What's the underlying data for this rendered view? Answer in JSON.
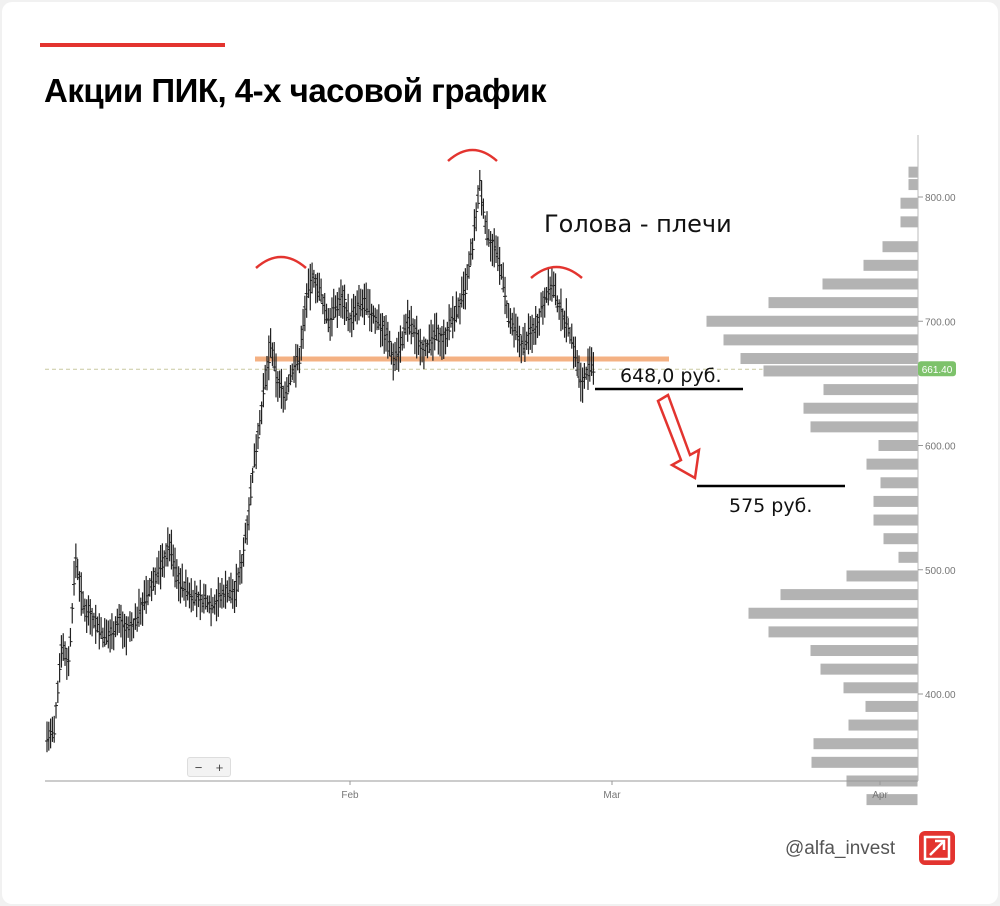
{
  "header": {
    "title": "Акции ПИК, 4-х часовой график"
  },
  "footer": {
    "handle": "@alfa_invest"
  },
  "zoom": {
    "minus": "−",
    "plus": "+"
  },
  "colors": {
    "accent": "#e3342f",
    "candles": "#222222",
    "neckline": "#f4b183",
    "volume_bars": "#b3b3b3",
    "price_badge": "#7dc26b",
    "arrow": "#e3342f"
  },
  "chart_data": {
    "type": "candlestick",
    "y_axis": {
      "ticks": [
        "400.00",
        "500.00",
        "600.00",
        "700.00",
        "800.00"
      ],
      "min": 340,
      "max": 830
    },
    "x_axis": {
      "ticks": [
        "Feb",
        "Mar",
        "Apr"
      ]
    },
    "current_price": "661.40",
    "price_series": [
      366,
      368,
      440,
      425,
      510,
      470,
      465,
      455,
      445,
      450,
      460,
      450,
      455,
      470,
      480,
      495,
      505,
      520,
      495,
      485,
      480,
      475,
      475,
      472,
      478,
      485,
      480,
      505,
      550,
      600,
      640,
      680,
      650,
      640,
      660,
      670,
      720,
      735,
      720,
      700,
      710,
      720,
      700,
      710,
      715,
      705,
      700,
      690,
      670,
      680,
      700,
      690,
      680,
      680,
      690,
      685,
      700,
      710,
      725,
      760,
      810,
      770,
      760,
      740,
      700,
      690,
      680,
      690,
      700,
      720,
      730,
      710,
      700,
      680,
      650,
      661
    ],
    "annotations": {
      "pattern_label": "Голова - плечи",
      "level_1": "648,0 руб.",
      "level_2": "575 руб."
    },
    "volume_profile": [
      {
        "price": 820,
        "width": 10
      },
      {
        "price": 810,
        "width": 10
      },
      {
        "price": 795,
        "width": 18
      },
      {
        "price": 780,
        "width": 18
      },
      {
        "price": 760,
        "width": 36
      },
      {
        "price": 745,
        "width": 55
      },
      {
        "price": 730,
        "width": 96
      },
      {
        "price": 715,
        "width": 150
      },
      {
        "price": 700,
        "width": 212
      },
      {
        "price": 685,
        "width": 195
      },
      {
        "price": 670,
        "width": 178
      },
      {
        "price": 660,
        "width": 155
      },
      {
        "price": 645,
        "width": 95
      },
      {
        "price": 630,
        "width": 115
      },
      {
        "price": 615,
        "width": 108
      },
      {
        "price": 600,
        "width": 40
      },
      {
        "price": 585,
        "width": 52
      },
      {
        "price": 570,
        "width": 38
      },
      {
        "price": 555,
        "width": 45
      },
      {
        "price": 540,
        "width": 45
      },
      {
        "price": 525,
        "width": 35
      },
      {
        "price": 510,
        "width": 20
      },
      {
        "price": 495,
        "width": 72
      },
      {
        "price": 480,
        "width": 138
      },
      {
        "price": 465,
        "width": 170
      },
      {
        "price": 450,
        "width": 150
      },
      {
        "price": 435,
        "width": 108
      },
      {
        "price": 420,
        "width": 98
      },
      {
        "price": 405,
        "width": 75
      },
      {
        "price": 390,
        "width": 53
      },
      {
        "price": 375,
        "width": 70
      },
      {
        "price": 360,
        "width": 105
      },
      {
        "price": 345,
        "width": 107
      },
      {
        "price": 330,
        "width": 72
      },
      {
        "price": 315,
        "width": 52
      }
    ]
  }
}
